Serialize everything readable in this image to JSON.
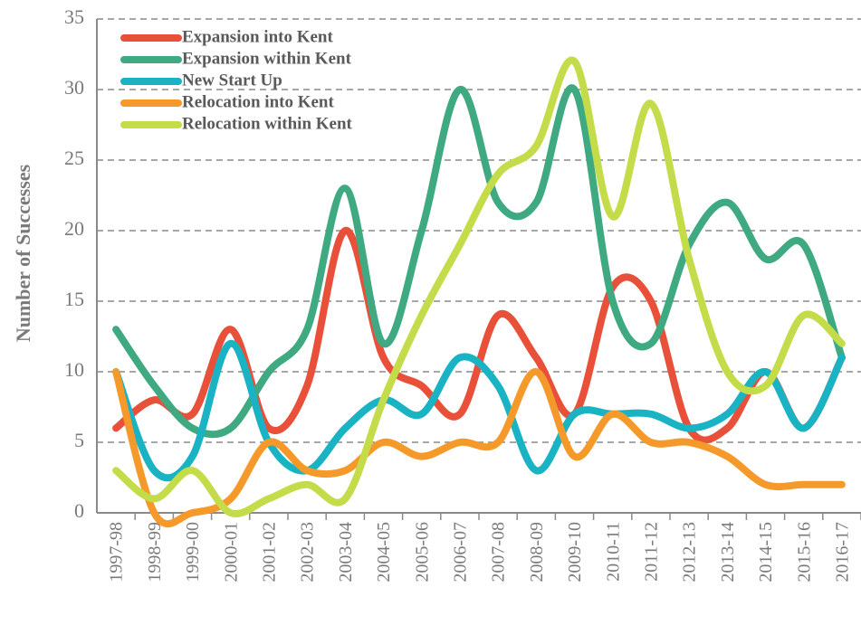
{
  "chart_data": {
    "type": "line",
    "y_label": "Number of Successes",
    "categories": [
      "1997-98",
      "1998-99",
      "1999-00",
      "2000-01",
      "2001-02",
      "2002-03",
      "2003-04",
      "2004-05",
      "2005-06",
      "2006-07",
      "2007-08",
      "2008-09",
      "2009-10",
      "2010-11",
      "2011-12",
      "2012-13",
      "2013-14",
      "2014-15",
      "2015-16",
      "2016-17"
    ],
    "series": [
      {
        "name": "Expansion into Kent",
        "color": "#e8503a",
        "values": [
          6,
          8,
          7,
          13,
          6,
          9,
          20,
          11,
          9,
          7,
          14,
          11,
          7,
          16,
          15,
          6,
          6,
          10,
          6,
          11
        ]
      },
      {
        "name": "Expansion within Kent",
        "color": "#3fa982",
        "values": [
          13,
          9,
          6,
          6,
          10,
          13,
          23,
          12,
          20,
          30,
          22,
          22,
          30,
          15,
          12,
          19,
          22,
          18,
          19,
          11
        ]
      },
      {
        "name": "New Start Up",
        "color": "#1ab3c4",
        "values": [
          10,
          3,
          4,
          12,
          5,
          3,
          6,
          8,
          7,
          11,
          9,
          3,
          7,
          7,
          7,
          6,
          7,
          10,
          6,
          11
        ]
      },
      {
        "name": "Relocation into Kent",
        "color": "#f59a2a",
        "values": [
          10,
          0,
          0,
          1,
          5,
          3,
          3,
          5,
          4,
          5,
          5,
          10,
          4,
          7,
          5,
          5,
          4,
          2,
          2,
          2
        ]
      },
      {
        "name": "Relocation within Kent",
        "color": "#c5dc4a",
        "values": [
          3,
          1,
          3,
          0,
          1,
          2,
          1,
          8,
          14,
          19,
          24,
          26,
          32,
          21,
          29,
          18,
          10,
          9,
          14,
          12
        ]
      }
    ],
    "ylim": [
      0,
      35
    ],
    "yticks": [
      0,
      5,
      10,
      15,
      20,
      25,
      30,
      35
    ],
    "grid": true,
    "legend": "top-left"
  }
}
